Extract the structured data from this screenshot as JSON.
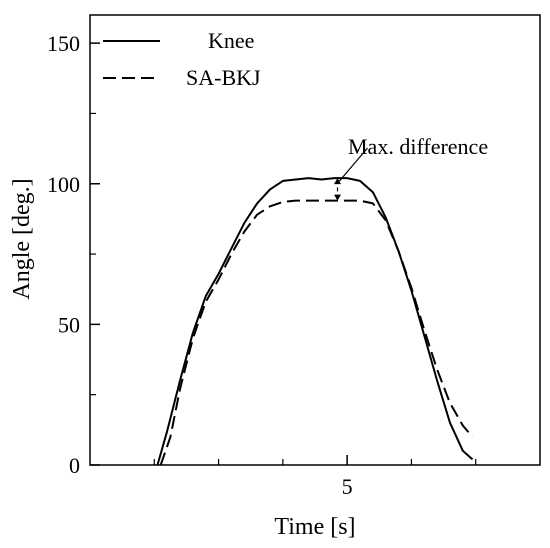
{
  "chart_data": {
    "type": "line",
    "title": "",
    "xlabel": "Time [s]",
    "ylabel": "Angle [deg.]",
    "xlim": [
      1.0,
      8.0
    ],
    "ylim": [
      0,
      160
    ],
    "x_ticks": [
      5
    ],
    "x_tick_labels": [
      "5"
    ],
    "y_ticks": [
      0,
      50,
      100,
      150
    ],
    "y_tick_labels": [
      "0",
      "50",
      "100",
      "150"
    ],
    "grid": false,
    "legend_position": "top-left",
    "series": [
      {
        "name": "Knee",
        "line_style": "solid",
        "color": "#000000",
        "x": [
          2.05,
          2.2,
          2.4,
          2.6,
          2.8,
          3.0,
          3.2,
          3.4,
          3.6,
          3.8,
          4.0,
          4.2,
          4.4,
          4.6,
          4.8,
          5.0,
          5.2,
          5.4,
          5.6,
          5.8,
          6.0,
          6.2,
          6.4,
          6.6,
          6.8,
          6.95
        ],
        "values": [
          0,
          12,
          30,
          47,
          60,
          68,
          77,
          86,
          93,
          98,
          101,
          101.5,
          102,
          101.5,
          102,
          102,
          101,
          97,
          88,
          76,
          62,
          46,
          30,
          15,
          5,
          2
        ]
      },
      {
        "name": "SA-BKJ",
        "line_style": "dashed",
        "color": "#000000",
        "x": [
          2.1,
          2.25,
          2.4,
          2.6,
          2.8,
          3.0,
          3.2,
          3.4,
          3.6,
          3.8,
          4.0,
          4.2,
          4.4,
          4.6,
          4.8,
          5.0,
          5.2,
          5.4,
          5.6,
          5.8,
          6.0,
          6.2,
          6.4,
          6.6,
          6.8,
          6.95
        ],
        "values": [
          0,
          10,
          27,
          45,
          58,
          66,
          75,
          83,
          89,
          92,
          93.5,
          94,
          94,
          94,
          94,
          94,
          94,
          93,
          87,
          76,
          63,
          48,
          34,
          22,
          14,
          10
        ]
      }
    ],
    "annotations": [
      {
        "text": "Max. difference",
        "x": 4.85,
        "y_from": 94,
        "y_to": 102
      }
    ]
  }
}
